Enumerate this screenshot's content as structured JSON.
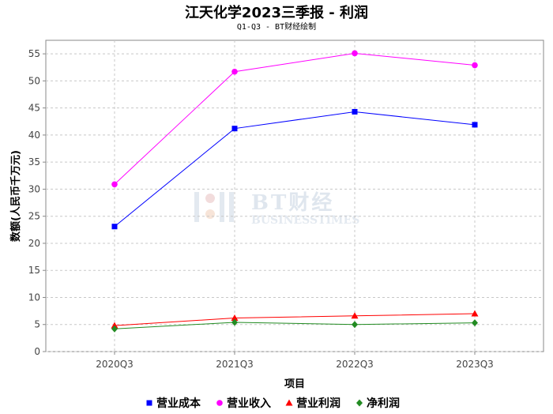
{
  "chart_data": {
    "type": "line",
    "title": "江天化学2023三季报 - 利润",
    "subtitle": "Q1-Q3 - BT财经绘制",
    "xlabel": "项目",
    "ylabel": "数额(人民币千万元)",
    "categories": [
      "2020Q3",
      "2021Q3",
      "2022Q3",
      "2023Q3"
    ],
    "ylim": [
      0,
      57.5
    ],
    "yticks": [
      0,
      5,
      10,
      15,
      20,
      25,
      30,
      35,
      40,
      45,
      50,
      55
    ],
    "grid": true,
    "legend_position": "bottom",
    "series": [
      {
        "name": "营业成本",
        "color": "#0000ff",
        "marker": "square",
        "values": [
          23.1,
          41.2,
          44.3,
          41.9
        ]
      },
      {
        "name": "营业收入",
        "color": "#ff00ff",
        "marker": "circle",
        "values": [
          30.9,
          51.7,
          55.1,
          52.9
        ]
      },
      {
        "name": "营业利润",
        "color": "#ff0000",
        "marker": "triangle",
        "values": [
          4.8,
          6.2,
          6.6,
          7.0
        ]
      },
      {
        "name": "净利润",
        "color": "#228b22",
        "marker": "diamond",
        "values": [
          4.2,
          5.4,
          5.0,
          5.3
        ]
      }
    ]
  },
  "watermark": {
    "main": "BT财经",
    "sub": "BUSINESSTIMES"
  }
}
